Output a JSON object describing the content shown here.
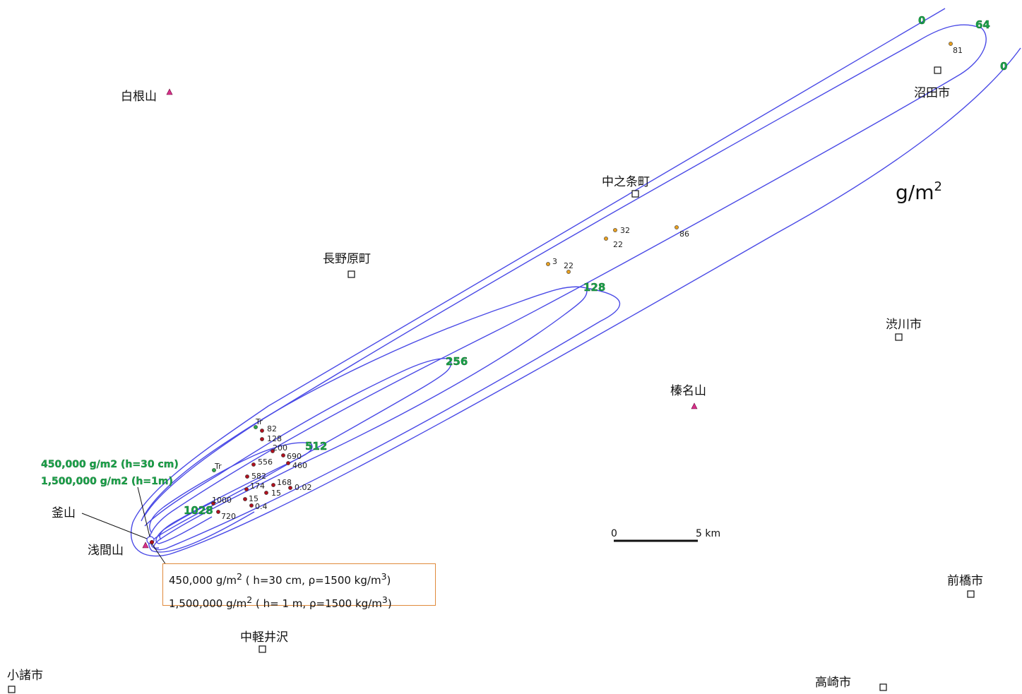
{
  "unit_label": "g/m2",
  "places": {
    "shirane": "白根山",
    "numata": "沼田市",
    "nakanojo": "中之条町",
    "naganohara": "長野原町",
    "shibukawa": "渋川市",
    "haruna": "榛名山",
    "kamayama": "釜山",
    "asama": "浅間山",
    "maebashi": "前橋市",
    "nakakaruizawa": "中軽井沢",
    "komoro": "小諸市",
    "takasaki": "高崎市"
  },
  "contours": [
    {
      "label": "0"
    },
    {
      "label": "64"
    },
    {
      "label": "0"
    },
    {
      "label": "128"
    },
    {
      "label": "256"
    },
    {
      "label": "512"
    },
    {
      "label": "1028"
    }
  ],
  "samples": [
    {
      "label": "81"
    },
    {
      "label": "32"
    },
    {
      "label": "22"
    },
    {
      "label": "86"
    },
    {
      "label": "3"
    },
    {
      "label": "22"
    },
    {
      "label": "Tr"
    },
    {
      "label": "82"
    },
    {
      "label": "128"
    },
    {
      "label": "200"
    },
    {
      "label": "690"
    },
    {
      "label": "460"
    },
    {
      "label": "556"
    },
    {
      "label": "Tr"
    },
    {
      "label": "582"
    },
    {
      "label": "174"
    },
    {
      "label": "168"
    },
    {
      "label": "15"
    },
    {
      "label": "0.02"
    },
    {
      "label": "15"
    },
    {
      "label": "1000"
    },
    {
      "label": "0.4"
    },
    {
      "label": "720"
    }
  ],
  "green_notes": {
    "line1": "450,000  g/m2  (h=30 cm)",
    "line2": "1,500,000 g/m2  (h=1m)"
  },
  "note_box": {
    "line1_a": "450,000 g/m",
    "line1_sup": "2",
    "line1_b": " ( h=30 cm,  ρ=1500 kg/m",
    "line1_sup2": "3",
    "line1_c": ")",
    "line2_a": "1,500,000 g/m",
    "line2_sup": "2",
    "line2_b": " ( h= 1 m,  ρ=1500 kg/m",
    "line2_sup2": "3",
    "line2_c": ")"
  },
  "scale": {
    "start": "0",
    "end": "5 km"
  },
  "colors": {
    "contour": "#4a4ae6",
    "sample_red": "#b0101e",
    "sample_orange": "#e8a020",
    "sample_green": "#2aa84a",
    "label_green": "#1aa34a",
    "volcano": "#d8308a",
    "note_border": "#e08a3c"
  }
}
